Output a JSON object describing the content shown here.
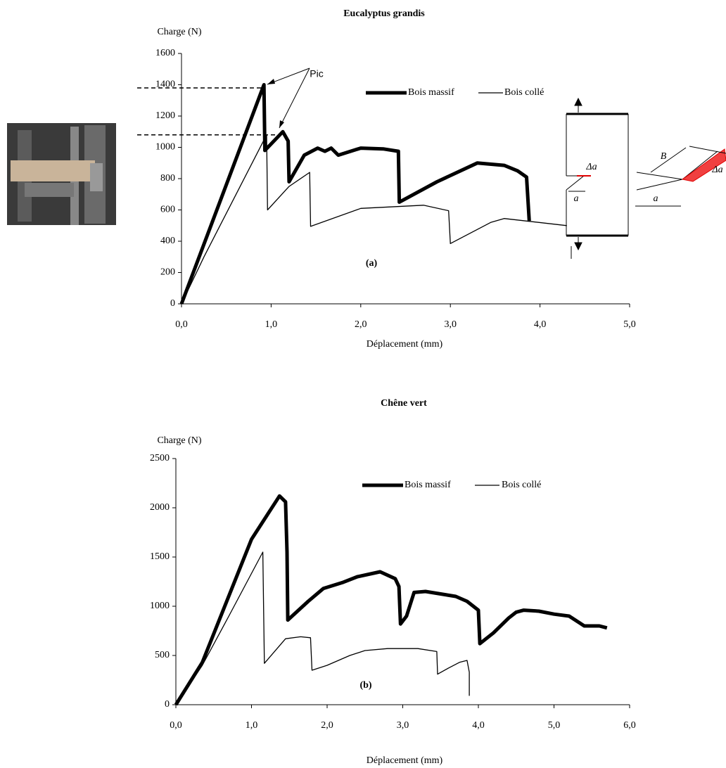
{
  "chart_data": [
    {
      "type": "line",
      "title": "Eucalyptus grandis",
      "y_label": "Charge (N)",
      "x_label": "Déplacement (mm)",
      "xlim": [
        0,
        5
      ],
      "ylim": [
        0,
        1600
      ],
      "xticks": [
        {
          "value": 0,
          "label": "0,0"
        },
        {
          "value": 1,
          "label": "1,0"
        },
        {
          "value": 2,
          "label": "2,0"
        },
        {
          "value": 3,
          "label": "3,0"
        },
        {
          "value": 4,
          "label": "4,0"
        },
        {
          "value": 5,
          "label": "5,0"
        }
      ],
      "yticks": [
        0,
        200,
        400,
        600,
        800,
        1000,
        1200,
        1400,
        1600
      ],
      "reference_lines": [
        1380,
        1080
      ],
      "annotations": [
        "Pic",
        "(a)"
      ],
      "inset_labels": [
        "Δa",
        "a",
        "B",
        "Δa",
        "a"
      ],
      "series": [
        {
          "name": "Bois massif",
          "color": "#000000",
          "x": [
            0,
            0.92,
            0.93,
            1.13,
            1.19,
            1.2,
            1.37,
            1.52,
            1.6,
            1.67,
            1.75,
            2.0,
            2.25,
            2.42,
            2.43,
            2.85,
            3.3,
            3.6,
            3.75,
            3.85,
            3.88
          ],
          "values": [
            0,
            1400,
            980,
            1100,
            1040,
            780,
            950,
            995,
            975,
            995,
            950,
            995,
            990,
            975,
            650,
            780,
            900,
            885,
            850,
            810,
            530
          ]
        },
        {
          "name": "Bois collé",
          "color": "#000000",
          "x": [
            0,
            0.25,
            0.95,
            0.96,
            1.2,
            1.43,
            1.44,
            2.0,
            2.7,
            2.98,
            3.0,
            3.45,
            3.6,
            4.3
          ],
          "values": [
            0,
            300,
            1080,
            600,
            750,
            840,
            495,
            610,
            630,
            595,
            385,
            520,
            545,
            500
          ]
        }
      ]
    },
    {
      "type": "line",
      "title": "Chêne vert",
      "y_label": "Charge (N)",
      "x_label": "Déplacement (mm)",
      "xlim": [
        0,
        6
      ],
      "ylim": [
        0,
        2500
      ],
      "xticks": [
        {
          "value": 0,
          "label": "0,0"
        },
        {
          "value": 1,
          "label": "1,0"
        },
        {
          "value": 2,
          "label": "2,0"
        },
        {
          "value": 3,
          "label": "3,0"
        },
        {
          "value": 4,
          "label": "4,0"
        },
        {
          "value": 5,
          "label": "5,0"
        },
        {
          "value": 6,
          "label": "6,0"
        }
      ],
      "yticks": [
        0,
        500,
        1000,
        1500,
        2000,
        2500
      ],
      "annotations": [
        "(b)"
      ],
      "series": [
        {
          "name": "Bois massif",
          "color": "#000000",
          "x": [
            0,
            0.35,
            1.0,
            1.37,
            1.45,
            1.47,
            1.48,
            1.75,
            1.95,
            2.2,
            2.4,
            2.7,
            2.9,
            2.95,
            2.97,
            3.05,
            3.15,
            3.3,
            3.7,
            3.85,
            4.0,
            4.02,
            4.2,
            4.4,
            4.5,
            4.6,
            4.8,
            5.0,
            5.2,
            5.4,
            5.6,
            5.7
          ],
          "values": [
            0,
            430,
            1680,
            2120,
            2060,
            1550,
            860,
            1050,
            1180,
            1240,
            1300,
            1350,
            1280,
            1200,
            820,
            900,
            1140,
            1150,
            1100,
            1050,
            960,
            620,
            730,
            880,
            940,
            960,
            950,
            920,
            900,
            800,
            800,
            780
          ]
        },
        {
          "name": "Bois collé",
          "color": "#000000",
          "x": [
            0,
            0.35,
            0.7,
            1.15,
            1.17,
            1.45,
            1.65,
            1.78,
            1.8,
            2.0,
            2.3,
            2.5,
            2.8,
            3.2,
            3.45,
            3.46,
            3.6,
            3.75,
            3.85,
            3.88,
            3.88
          ],
          "values": [
            0,
            400,
            900,
            1550,
            420,
            670,
            690,
            680,
            350,
            400,
            500,
            550,
            570,
            570,
            540,
            310,
            370,
            430,
            450,
            330,
            90
          ]
        }
      ]
    }
  ]
}
